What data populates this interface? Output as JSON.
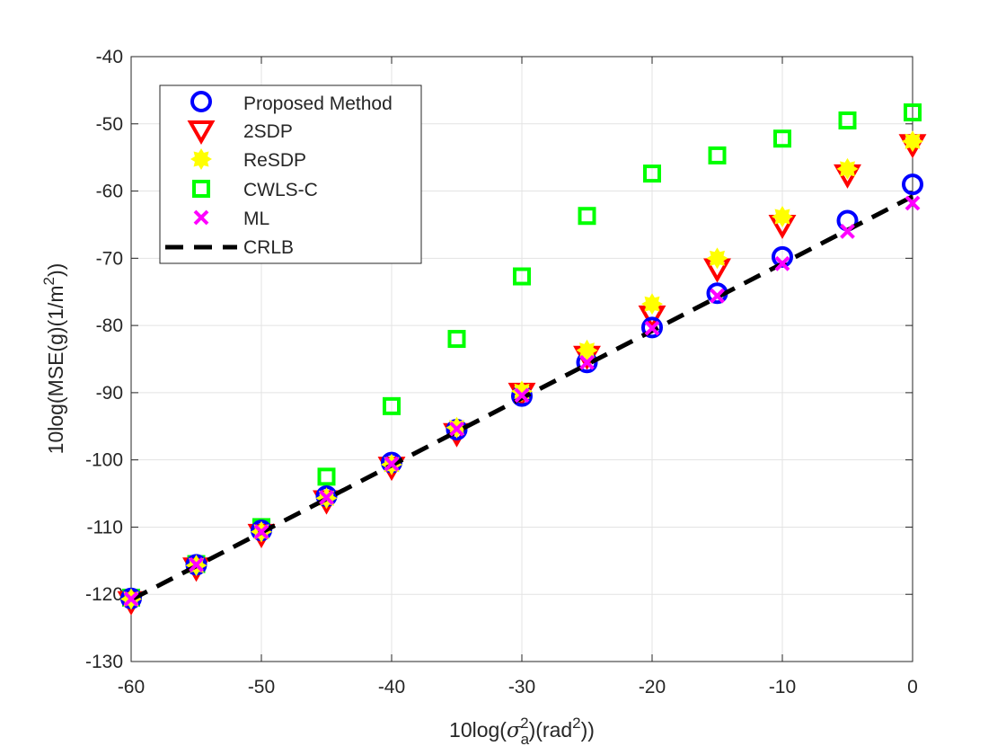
{
  "chart_data": {
    "type": "scatter",
    "title": "",
    "xlabel": {
      "prefix": "10log(",
      "sigma": "σ",
      "sub": "a",
      "sup": "2",
      "mid": ")(rad",
      "sup2": "2",
      "suffix": "))"
    },
    "ylabel": {
      "prefix": "10log(MSE(g)(1/m",
      "sup": "2",
      "suffix": "))"
    },
    "xlim": [
      -60,
      0
    ],
    "ylim": [
      -130,
      -40
    ],
    "xticks": [
      -60,
      -50,
      -40,
      -30,
      -20,
      -10,
      0
    ],
    "yticks": [
      -130,
      -120,
      -110,
      -100,
      -90,
      -80,
      -70,
      -60,
      -50,
      -40
    ],
    "xtick_labels": [
      "-60",
      "-50",
      "-40",
      "-30",
      "-20",
      "-10",
      "0"
    ],
    "ytick_labels": [
      "-130",
      "-120",
      "-110",
      "-100",
      "-90",
      "-80",
      "-70",
      "-60",
      "-50",
      "-40"
    ],
    "grid": true,
    "legend_position": "top-left",
    "x": [
      -60,
      -55,
      -50,
      -45,
      -40,
      -35,
      -30,
      -25,
      -20,
      -15,
      -10,
      -5,
      0
    ],
    "series": [
      {
        "name": "Proposed Method",
        "marker": "circle",
        "color": "#0000ff",
        "values": [
          -120.6,
          -115.6,
          -110.5,
          -105.4,
          -100.4,
          -95.5,
          -90.5,
          -85.5,
          -80.3,
          -75.2,
          -69.8,
          -64.4,
          -59.0
        ]
      },
      {
        "name": "2SDP",
        "marker": "triangle-down",
        "color": "#ff0000",
        "values": [
          -121.0,
          -116.0,
          -111.0,
          -106.0,
          -101.0,
          -96.0,
          -90.0,
          -84.5,
          -78.5,
          -71.5,
          -65.0,
          -57.5,
          -53.0
        ]
      },
      {
        "name": "ReSDP",
        "marker": "star",
        "color": "#ffff00",
        "values": [
          -120.7,
          -115.7,
          -110.7,
          -105.7,
          -100.7,
          -95.2,
          -89.8,
          -83.7,
          -76.8,
          -70.0,
          -63.8,
          -56.7,
          -52.6
        ]
      },
      {
        "name": "CWLS-C",
        "marker": "square",
        "color": "#00ff00",
        "values": [
          -120.5,
          -115.5,
          -110.0,
          -102.5,
          -92.0,
          -82.0,
          -72.7,
          -63.7,
          -57.4,
          -54.7,
          -52.2,
          -49.5,
          -48.3
        ]
      },
      {
        "name": "ML",
        "marker": "x",
        "color": "#ff00ff",
        "values": [
          -120.7,
          -115.6,
          -110.7,
          -105.6,
          -100.6,
          -95.4,
          -90.4,
          -85.5,
          -80.4,
          -75.6,
          -70.8,
          -66.0,
          -61.8
        ]
      },
      {
        "name": "CRLB",
        "marker": "dashed-line",
        "color": "#000000",
        "values": [
          -120.8,
          -115.8,
          -110.8,
          -105.8,
          -100.8,
          -95.8,
          -90.8,
          -85.8,
          -80.8,
          -75.8,
          -70.8,
          -65.8,
          -60.8
        ]
      }
    ]
  }
}
